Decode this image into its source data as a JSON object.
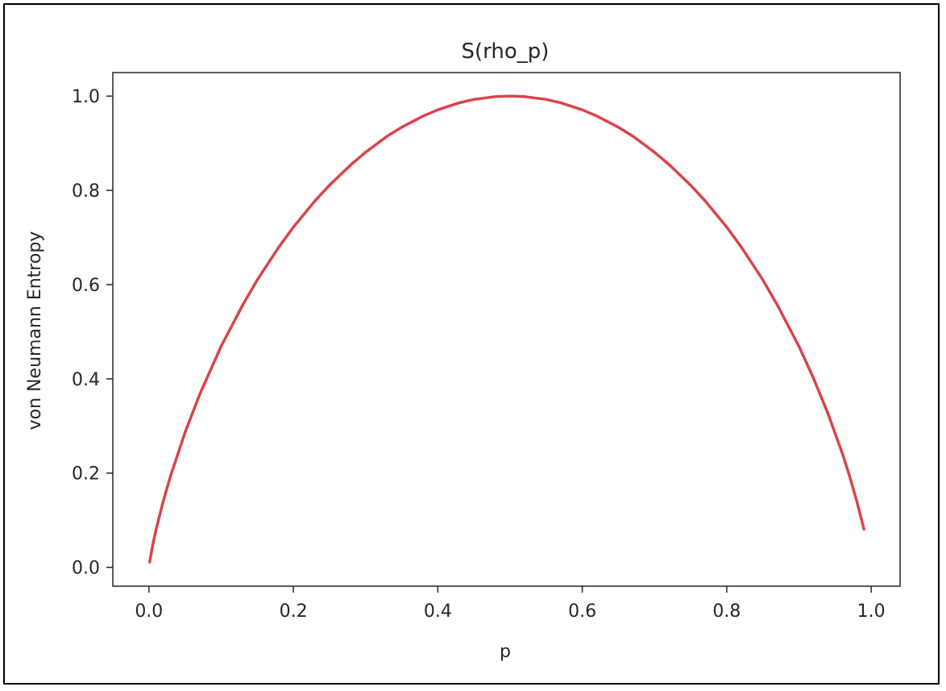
{
  "chart_data": {
    "type": "line",
    "title": "S(rho_p)",
    "xlabel": "p",
    "ylabel": "von Neumann Entropy",
    "xlim": [
      -0.05,
      1.04
    ],
    "ylim": [
      -0.04,
      1.05
    ],
    "xticks": [
      0.0,
      0.2,
      0.4,
      0.6,
      0.8,
      1.0
    ],
    "xtick_labels": [
      "0.0",
      "0.2",
      "0.4",
      "0.6",
      "0.8",
      "1.0"
    ],
    "yticks": [
      0.0,
      0.2,
      0.4,
      0.6,
      0.8,
      1.0
    ],
    "ytick_labels": [
      "0.0",
      "0.2",
      "0.4",
      "0.6",
      "0.8",
      "1.0"
    ],
    "grid": false,
    "series": [
      {
        "color": "#d9444b",
        "x": [
          0.001,
          0.005,
          0.01,
          0.02,
          0.03,
          0.05,
          0.07,
          0.1,
          0.13,
          0.15,
          0.18,
          0.2,
          0.23,
          0.25,
          0.28,
          0.3,
          0.33,
          0.35,
          0.38,
          0.4,
          0.43,
          0.45,
          0.48,
          0.5,
          0.52,
          0.55,
          0.57,
          0.6,
          0.62,
          0.65,
          0.67,
          0.7,
          0.72,
          0.75,
          0.77,
          0.8,
          0.82,
          0.85,
          0.87,
          0.9,
          0.92,
          0.94,
          0.96,
          0.97,
          0.98,
          0.99
        ],
        "y": [
          0.011,
          0.045,
          0.081,
          0.141,
          0.194,
          0.286,
          0.366,
          0.469,
          0.557,
          0.61,
          0.68,
          0.722,
          0.778,
          0.811,
          0.855,
          0.881,
          0.915,
          0.934,
          0.958,
          0.971,
          0.986,
          0.993,
          0.999,
          1.0,
          0.999,
          0.993,
          0.986,
          0.971,
          0.958,
          0.934,
          0.915,
          0.881,
          0.855,
          0.811,
          0.778,
          0.722,
          0.68,
          0.61,
          0.557,
          0.469,
          0.402,
          0.327,
          0.242,
          0.194,
          0.141,
          0.081
        ]
      }
    ]
  }
}
